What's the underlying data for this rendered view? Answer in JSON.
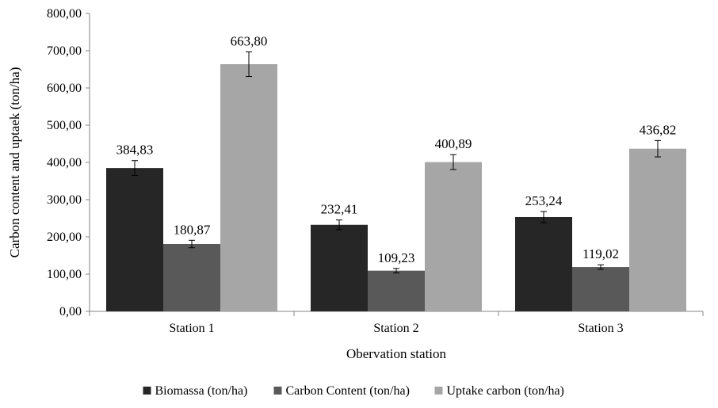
{
  "chart_data": {
    "type": "bar",
    "categories": [
      "Station 1",
      "Station 2",
      "Station 3"
    ],
    "series": [
      {
        "name": "Biomassa (ton/ha)",
        "values": [
          384.83,
          232.41,
          253.24
        ],
        "labels": [
          "384,83",
          "232,41",
          "253,24"
        ],
        "errors": [
          20,
          13,
          15
        ],
        "color": "#262626"
      },
      {
        "name": "Carbon Content (ton/ha)",
        "values": [
          180.87,
          109.23,
          119.02
        ],
        "labels": [
          "180,87",
          "109,23",
          "119,02"
        ],
        "errors": [
          10,
          6,
          6
        ],
        "color": "#595959"
      },
      {
        "name": "Uptake carbon (ton/ha)",
        "values": [
          663.8,
          400.89,
          436.82
        ],
        "labels": [
          "663,80",
          "400,89",
          "436,82"
        ],
        "errors": [
          33,
          20,
          22
        ],
        "color": "#a6a6a6"
      }
    ],
    "xlabel": "Obervation station",
    "ylabel": "Carbon content and uptaek (ton/ha)",
    "ylim": [
      0,
      800
    ],
    "yticks": [
      0,
      100,
      200,
      300,
      400,
      500,
      600,
      700,
      800
    ],
    "ytick_labels": [
      "0,00",
      "100,00",
      "200,00",
      "300,00",
      "400,00",
      "500,00",
      "600,00",
      "700,00",
      "800,00"
    ],
    "grid": false,
    "legend_position": "bottom",
    "error_bars": true
  }
}
